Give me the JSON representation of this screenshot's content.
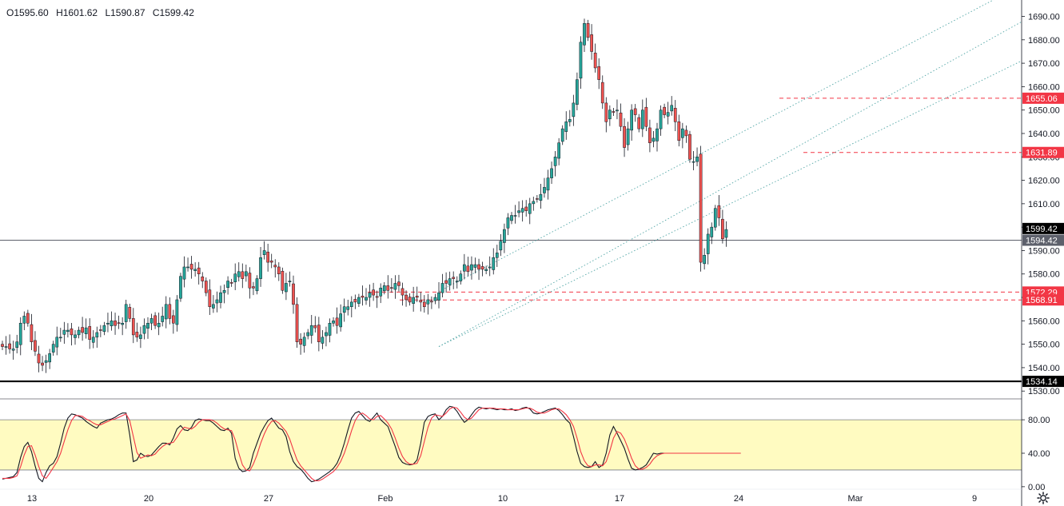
{
  "ohlc_header": {
    "open": "O1595.60",
    "high": "H1601.62",
    "low": "L1590.87",
    "close": "C1599.42"
  },
  "chart_data": [
    {
      "type": "candlestick",
      "y_axis_ticks": [
        "1690.00",
        "1680.00",
        "1670.00",
        "1660.00",
        "1650.00",
        "1640.00",
        "1630.00",
        "1620.00",
        "1610.00",
        "1600.00",
        "1590.00",
        "1580.00",
        "1570.00",
        "1560.00",
        "1550.00",
        "1540.00",
        "1530.00"
      ],
      "ylim": [
        1527,
        1697
      ],
      "x_axis_labels": [
        "13",
        "20",
        "27",
        "Feb",
        "10",
        "17",
        "24",
        "Mar",
        "9"
      ],
      "price_labels": [
        {
          "text": "1655.06",
          "value": 1655.06,
          "color": "#f23645"
        },
        {
          "text": "1631.89",
          "value": 1631.89,
          "color": "#f23645"
        },
        {
          "text": "1599.42",
          "value": 1599.42,
          "color": "#000000"
        },
        {
          "text": "1594.42",
          "value": 1594.42,
          "color": "#5d606b"
        },
        {
          "text": "1572.29",
          "value": 1572.29,
          "color": "#f23645"
        },
        {
          "text": "1568.91",
          "value": 1568.91,
          "color": "#f23645"
        },
        {
          "text": "1534.14",
          "value": 1534.14,
          "color": "#000000"
        }
      ],
      "horizontal_lines": [
        {
          "value": 1655.06,
          "style": "dashed",
          "color": "#f23645"
        },
        {
          "value": 1631.89,
          "style": "dashed",
          "color": "#f23645"
        },
        {
          "value": 1572.29,
          "style": "dashed",
          "color": "#f23645"
        },
        {
          "value": 1568.91,
          "style": "dashed",
          "color": "#f23645"
        },
        {
          "value": 1594.42,
          "style": "solid",
          "color": "#5d606b"
        },
        {
          "value": 1534.14,
          "style": "solid-thick",
          "color": "#000000"
        }
      ],
      "channel_lines": [
        {
          "start": [
            "Feb 5",
            1572.5
          ],
          "end": [
            "Mar 6",
            1698.0
          ]
        },
        {
          "start": [
            "Feb 5",
            1549.0
          ],
          "end": [
            "Mar 6",
            1682.0
          ]
        },
        {
          "start": [
            "Feb 5",
            1549.0
          ],
          "end": [
            "Mar 6",
            1666.0
          ]
        }
      ],
      "up_color": "#26a69a",
      "down_color": "#ef5350",
      "closes": [
        1549,
        1549,
        1548,
        1548,
        1551,
        1559,
        1562,
        1559,
        1551,
        1547,
        1542,
        1541,
        1543,
        1546,
        1550,
        1553,
        1553,
        1556,
        1556,
        1554,
        1554,
        1556,
        1555,
        1557,
        1552,
        1553,
        1555,
        1556,
        1558,
        1559,
        1560,
        1558,
        1559,
        1559,
        1567,
        1561,
        1554,
        1553,
        1554,
        1558,
        1559,
        1561,
        1558,
        1559,
        1562,
        1567,
        1561,
        1559,
        1569,
        1579,
        1583,
        1583,
        1582,
        1582,
        1580,
        1577,
        1572,
        1566,
        1567,
        1569,
        1572,
        1573,
        1577,
        1576,
        1580,
        1581,
        1578,
        1581,
        1574,
        1574,
        1578,
        1587,
        1590,
        1585,
        1585,
        1583,
        1580,
        1573,
        1576,
        1577,
        1567,
        1551,
        1550,
        1553,
        1555,
        1558,
        1557,
        1551,
        1553,
        1555,
        1559,
        1560,
        1558,
        1563,
        1566,
        1566,
        1568,
        1568,
        1570,
        1570,
        1570,
        1572,
        1571,
        1570,
        1574,
        1575,
        1573,
        1574,
        1576,
        1575,
        1571,
        1569,
        1568,
        1570,
        1570,
        1568,
        1566,
        1569,
        1568,
        1570,
        1572,
        1576,
        1576,
        1578,
        1578,
        1577,
        1580,
        1584,
        1581,
        1584,
        1584,
        1582,
        1582,
        1582,
        1583,
        1587,
        1589,
        1594,
        1599,
        1604,
        1605,
        1605,
        1607,
        1608,
        1607,
        1610,
        1611,
        1612,
        1614,
        1617,
        1621,
        1625,
        1630,
        1636,
        1642,
        1645,
        1646,
        1653,
        1663,
        1679,
        1687,
        1681,
        1675,
        1668,
        1663,
        1653,
        1645,
        1650,
        1649,
        1650,
        1643,
        1634,
        1642,
        1650,
        1648,
        1642,
        1650,
        1643,
        1636,
        1638,
        1642,
        1650,
        1648,
        1649,
        1652,
        1645,
        1637,
        1642,
        1639,
        1629,
        1628,
        1630,
        1585,
        1588,
        1597,
        1600,
        1608,
        1604,
        1595,
        1599
      ]
    },
    {
      "type": "line",
      "indicator": "stochastic",
      "y_axis_ticks": [
        "80.00",
        "40.00",
        "0.00"
      ],
      "ylim": [
        -3,
        104
      ],
      "band": [
        20,
        80
      ],
      "band_color": "#fffbc1",
      "series": [
        {
          "color": "#131722",
          "values": [
            9,
            10,
            11,
            12,
            17,
            35,
            48,
            53,
            42,
            25,
            10,
            6,
            17,
            25,
            28,
            36,
            52,
            70,
            82,
            87,
            86,
            84,
            82,
            78,
            75,
            72,
            70,
            76,
            78,
            80,
            81,
            83,
            86,
            88,
            88,
            62,
            30,
            32,
            40,
            37,
            36,
            38,
            43,
            48,
            52,
            52,
            50,
            58,
            69,
            73,
            68,
            67,
            71,
            79,
            81,
            80,
            79,
            79,
            76,
            72,
            68,
            67,
            70,
            64,
            34,
            22,
            18,
            19,
            23,
            40,
            52,
            64,
            72,
            79,
            82,
            76,
            70,
            68,
            60,
            42,
            30,
            24,
            21,
            16,
            10,
            6,
            7,
            9,
            12,
            15,
            18,
            22,
            28,
            38,
            52,
            68,
            82,
            88,
            90,
            85,
            80,
            78,
            83,
            88,
            80,
            76,
            72,
            60,
            48,
            35,
            29,
            27,
            26,
            27,
            32,
            52,
            77,
            84,
            86,
            87,
            80,
            84,
            92,
            96,
            95,
            90,
            83,
            77,
            80,
            86,
            92,
            95,
            94,
            93,
            94,
            93,
            92,
            93,
            92,
            92,
            93,
            91,
            92,
            94,
            95,
            93,
            88,
            87,
            88,
            90,
            92,
            93,
            94,
            91,
            86,
            80,
            76,
            60,
            42,
            28,
            24,
            23,
            24,
            30,
            23,
            26,
            40,
            62,
            72,
            64,
            55,
            46,
            33,
            22,
            20,
            21,
            23,
            26,
            33,
            40,
            39,
            40,
            40,
            40,
            40,
            40,
            40,
            40,
            40,
            40,
            40,
            40,
            40,
            40,
            40,
            40,
            40,
            40,
            40,
            40,
            40,
            40,
            40,
            40
          ]
        },
        {
          "color": "#f23645",
          "values": [
            10,
            10,
            10,
            11,
            13,
            24,
            38,
            48,
            49,
            38,
            24,
            13,
            10,
            16,
            23,
            30,
            40,
            54,
            68,
            79,
            85,
            85,
            84,
            81,
            79,
            76,
            74,
            74,
            76,
            78,
            80,
            81,
            83,
            85,
            87,
            79,
            60,
            41,
            34,
            36,
            38,
            37,
            39,
            44,
            48,
            51,
            52,
            53,
            59,
            66,
            71,
            70,
            69,
            72,
            77,
            80,
            80,
            80,
            79,
            76,
            72,
            69,
            68,
            67,
            56,
            40,
            26,
            20,
            19,
            27,
            38,
            52,
            63,
            72,
            78,
            79,
            76,
            71,
            66,
            57,
            44,
            32,
            25,
            20,
            15,
            10,
            7,
            7,
            9,
            12,
            15,
            18,
            23,
            30,
            40,
            53,
            67,
            79,
            86,
            88,
            85,
            81,
            80,
            84,
            85,
            81,
            76,
            69,
            58,
            46,
            36,
            30,
            27,
            27,
            28,
            37,
            54,
            71,
            82,
            86,
            85,
            84,
            88,
            93,
            95,
            94,
            89,
            83,
            80,
            82,
            87,
            92,
            94,
            94,
            94,
            94,
            93,
            93,
            93,
            92,
            92,
            92,
            92,
            93,
            94,
            94,
            92,
            89,
            88,
            88,
            90,
            92,
            93,
            93,
            90,
            86,
            80,
            72,
            58,
            42,
            31,
            25,
            24,
            26,
            26,
            25,
            30,
            43,
            58,
            66,
            64,
            57,
            46,
            34,
            25,
            21,
            21,
            23,
            27,
            33,
            37,
            39,
            40,
            40,
            40,
            40,
            40,
            40,
            40,
            40,
            40,
            40,
            40,
            40,
            40,
            40,
            40,
            40,
            40,
            40,
            40,
            40,
            40,
            40
          ]
        }
      ]
    }
  ]
}
